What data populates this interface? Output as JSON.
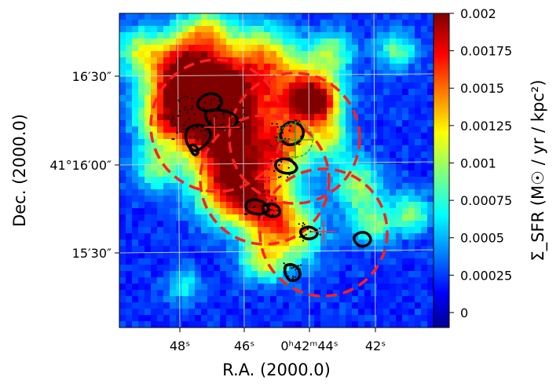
{
  "chart_data": {
    "type": "heatmap",
    "xlabel": "R.A. (2000.0)",
    "ylabel": "Dec. (2000.0)",
    "x_ticks": [
      "48ˢ",
      "46ˢ",
      "0ʰ42ᵐ44ˢ",
      "42ˢ"
    ],
    "y_ticks": [
      "16′30″",
      "41°16′00″",
      "15′30″"
    ],
    "colorbar": {
      "label": "Σ_SFR (M☉ / yr / kpc²)",
      "colormap": "jet",
      "range": [
        -0.0001,
        0.002
      ],
      "ticks": [
        "0.002",
        "0.00175",
        "0.0015",
        "0.00125",
        "0.001",
        "0.00075",
        "0.0005",
        "0.00025",
        "0"
      ]
    },
    "grid": true,
    "colors": {
      "circles": "#ff2020",
      "crosses": "#ff3333",
      "contours": "#000000",
      "green_marker": "#1aa81a",
      "gridline": "#dddddd"
    }
  }
}
